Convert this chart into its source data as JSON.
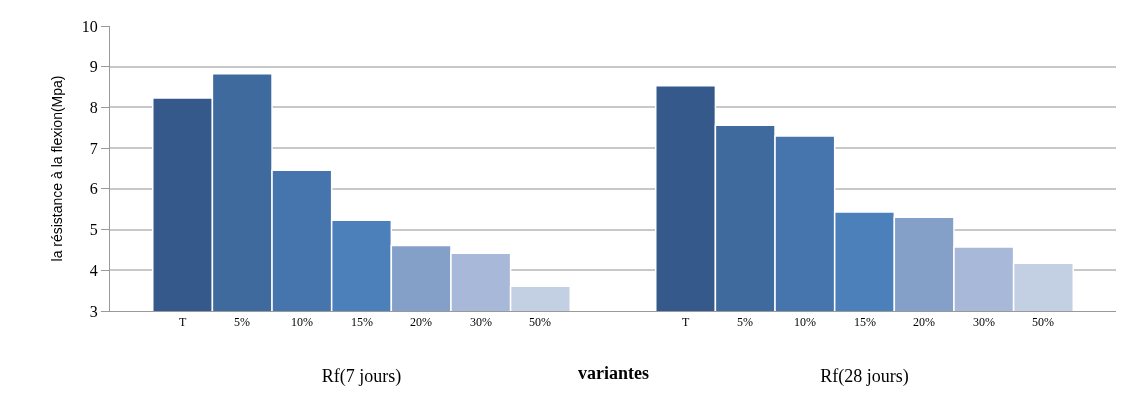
{
  "chart_data": {
    "type": "bar",
    "xlabel": "variantes",
    "ylabel": "la résistance à la flexion(Mpa)",
    "categories": [
      "Rf(7 jours)",
      "Rf(28 jours)"
    ],
    "series": [
      {
        "name": "T",
        "color": "#34598a",
        "values": [
          8.23,
          8.53
        ]
      },
      {
        "name": "5%",
        "color": "#3f6a9e",
        "values": [
          8.83,
          7.56
        ]
      },
      {
        "name": "10%",
        "color": "#4675ad",
        "values": [
          6.46,
          7.3
        ]
      },
      {
        "name": "15%",
        "color": "#4c80bb",
        "values": [
          5.23,
          5.43
        ]
      },
      {
        "name": "20%",
        "color": "#84a0c9",
        "values": [
          4.61,
          5.3
        ]
      },
      {
        "name": "30%",
        "color": "#a8b8d8",
        "values": [
          4.42,
          4.57
        ]
      },
      {
        "name": "50%",
        "color": "#c3cfe3",
        "values": [
          3.61,
          4.17
        ]
      }
    ],
    "ylim": [
      3,
      10
    ],
    "yticks": [
      3,
      4,
      5,
      6,
      7,
      8,
      9,
      10
    ],
    "grid": "y",
    "legend": false
  }
}
